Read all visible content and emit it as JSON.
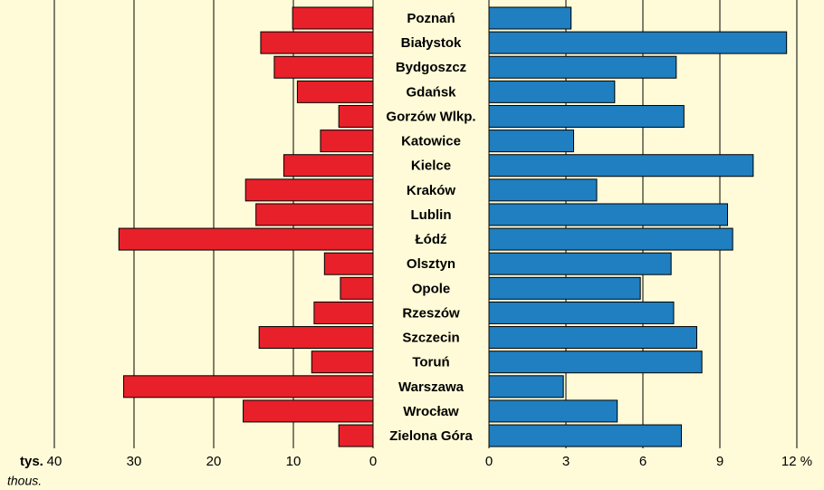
{
  "chart_data": {
    "type": "butterfly",
    "categories": [
      "Poznań",
      "Białystok",
      "Bydgoszcz",
      "Gdańsk",
      "Gorzów Wlkp.",
      "Katowice",
      "Kielce",
      "Kraków",
      "Lublin",
      "Łódź",
      "Olsztyn",
      "Opole",
      "Rzeszów",
      "Szczecin",
      "Toruń",
      "Warszawa",
      "Wrocław",
      "Zielona Góra"
    ],
    "series": [
      {
        "color": "#e8202a",
        "values": [
          10.1,
          14.1,
          12.4,
          9.5,
          4.3,
          6.6,
          11.2,
          16.0,
          14.7,
          31.9,
          6.1,
          4.1,
          7.4,
          14.3,
          7.7,
          31.3,
          16.3,
          4.3
        ]
      },
      {
        "color": "#1f7fc0",
        "axis": "x2",
        "values": [
          3.2,
          11.6,
          7.3,
          4.9,
          7.6,
          3.3,
          10.3,
          4.2,
          9.3,
          9.5,
          7.1,
          5.9,
          7.2,
          8.1,
          8.3,
          2.9,
          5.0,
          7.5
        ]
      }
    ],
    "xlabel": "tys.",
    "xlabel_sub": "thous.",
    "xlim": [
      0,
      40
    ],
    "xticks": [
      40,
      30,
      20,
      10,
      0
    ],
    "x2lim": [
      0,
      12
    ],
    "x2ticks": [
      0,
      3,
      6,
      9,
      {
        "value": 12,
        "label": "12 %"
      }
    ],
    "grid": true
  }
}
